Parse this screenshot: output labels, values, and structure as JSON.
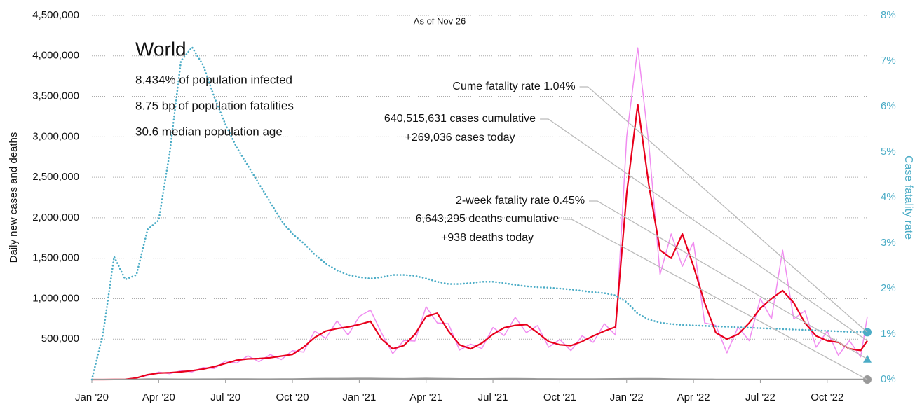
{
  "chart_data": {
    "type": "line",
    "title": "As of Nov 26",
    "ylabel": "Daily new cases and deaths",
    "y2label": "Case fatality rate",
    "info": {
      "heading": "World",
      "lines": [
        "8.434% of population infected",
        "8.75 bp of population fatalities",
        "30.6 median population age"
      ]
    },
    "annotations": [
      {
        "lines": [
          "Cume fatality rate 1.04%"
        ]
      },
      {
        "lines": [
          "640,515,631 cases cumulative",
          "+269,036 cases today"
        ]
      },
      {
        "lines": [
          "2-week fatality rate 0.45%"
        ]
      },
      {
        "lines": [
          "6,643,295 deaths cumulative",
          "+938 deaths today"
        ]
      }
    ],
    "markers": [
      {
        "value": 1.04,
        "axis": "y2",
        "shape": "circle",
        "color": "#4bacc6"
      },
      {
        "value": 0.45,
        "axis": "y2",
        "shape": "triangle",
        "color": "#4bacc6"
      },
      {
        "value": 0,
        "axis": "y",
        "shape": "circle",
        "color": "#999999"
      }
    ],
    "x": [
      0,
      0.5,
      1,
      1.5,
      2,
      2.5,
      3,
      3.5,
      4,
      4.5,
      5,
      5.5,
      6,
      6.5,
      7,
      7.5,
      8,
      8.5,
      9,
      9.5,
      10,
      10.5,
      11,
      11.5,
      12,
      12.5,
      13,
      13.5,
      14,
      14.5,
      15,
      15.5,
      16,
      16.5,
      17,
      17.5,
      18,
      18.5,
      19,
      19.5,
      20,
      20.5,
      21,
      21.5,
      22,
      22.5,
      23,
      23.5,
      24,
      24.5,
      25,
      25.5,
      26,
      26.5,
      27,
      27.5,
      28,
      28.5,
      29,
      29.5,
      30,
      30.5,
      31,
      31.5,
      32,
      32.5,
      33,
      33.5,
      34,
      34.5,
      34.8
    ],
    "xlim": [
      0,
      34.8
    ],
    "xticks": [
      {
        "value": 0,
        "label": "Jan '20"
      },
      {
        "value": 3,
        "label": "Apr '20"
      },
      {
        "value": 6,
        "label": "Jul '20"
      },
      {
        "value": 9,
        "label": "Oct '20"
      },
      {
        "value": 12,
        "label": "Jan '21"
      },
      {
        "value": 15,
        "label": "Apr '21"
      },
      {
        "value": 18,
        "label": "Jul '21"
      },
      {
        "value": 21,
        "label": "Oct '21"
      },
      {
        "value": 24,
        "label": "Jan '22"
      },
      {
        "value": 27,
        "label": "Apr '22"
      },
      {
        "value": 30,
        "label": "Jul '22"
      },
      {
        "value": 33,
        "label": "Oct '22"
      }
    ],
    "ylim": [
      0,
      4500000
    ],
    "yticks": [
      {
        "value": 500000,
        "label": "500,000"
      },
      {
        "value": 1000000,
        "label": "1,000,000"
      },
      {
        "value": 1500000,
        "label": "1,500,000"
      },
      {
        "value": 2000000,
        "label": "2,000,000"
      },
      {
        "value": 2500000,
        "label": "2,500,000"
      },
      {
        "value": 3000000,
        "label": "3,000,000"
      },
      {
        "value": 3500000,
        "label": "3,500,000"
      },
      {
        "value": 4000000,
        "label": "4,000,000"
      },
      {
        "value": 4500000,
        "label": "4,500,000"
      }
    ],
    "y2lim": [
      0,
      8
    ],
    "y2ticks": [
      {
        "value": 0,
        "label": "0%"
      },
      {
        "value": 1,
        "label": "1%"
      },
      {
        "value": 2,
        "label": "2%"
      },
      {
        "value": 3,
        "label": "3%"
      },
      {
        "value": 4,
        "label": "4%"
      },
      {
        "value": 5,
        "label": "5%"
      },
      {
        "value": 6,
        "label": "6%"
      },
      {
        "value": 7,
        "label": "7%"
      },
      {
        "value": 8,
        "label": "8%"
      }
    ],
    "grid": true,
    "series": [
      {
        "color": "#f08cf0",
        "style": "solid",
        "width": 1.5,
        "values": [
          0,
          0,
          1200,
          2500,
          23000,
          50000,
          92000,
          72000,
          109000,
          94000,
          150000,
          136000,
          230000,
          204000,
          293000,
          221000,
          310000,
          247000,
          357000,
          340000,
          600000,
          510000,
          725000,
          550000,
          780000,
          860000,
          575000,
          320000,
          483000,
          476000,
          900000,
          700000,
          690000,
          365000,
          437000,
          383000,
          644000,
          544000,
          770000,
          580000,
          667000,
          400000,
          495000,
          357000,
          540000,
          460000,
          690000,
          550000,
          3000000,
          4100000,
          2900000,
          1300000,
          1800000,
          1400000,
          1700000,
          700000,
          670000,
          330000,
          650000,
          480000,
          1000000,
          750000,
          1600000,
          750000,
          850000,
          400000,
          600000,
          300000,
          480000,
          280000,
          780000
        ]
      },
      {
        "color": "#e8001c",
        "style": "solid",
        "width": 2.2,
        "values": [
          0,
          0,
          1000,
          3000,
          20000,
          60000,
          80000,
          85000,
          95000,
          110000,
          130000,
          160000,
          200000,
          240000,
          255000,
          260000,
          270000,
          290000,
          310000,
          400000,
          520000,
          600000,
          630000,
          650000,
          680000,
          720000,
          500000,
          380000,
          420000,
          560000,
          780000,
          820000,
          600000,
          430000,
          380000,
          450000,
          560000,
          640000,
          670000,
          680000,
          580000,
          470000,
          430000,
          420000,
          470000,
          540000,
          600000,
          650000,
          2300000,
          3400000,
          2400000,
          1600000,
          1500000,
          1800000,
          1400000,
          950000,
          580000,
          500000,
          560000,
          700000,
          880000,
          1000000,
          1100000,
          950000,
          700000,
          540000,
          480000,
          460000,
          380000,
          360000,
          480000
        ]
      },
      {
        "color": "#999999",
        "style": "solid",
        "width": 2,
        "values": [
          0,
          0,
          100,
          500,
          3000,
          6000,
          6500,
          5000,
          4500,
          4500,
          5000,
          5500,
          6000,
          6000,
          5800,
          5500,
          5500,
          6000,
          7000,
          9000,
          11000,
          12000,
          12000,
          13000,
          14000,
          14000,
          12000,
          10000,
          9500,
          12000,
          13500,
          12000,
          10000,
          8500,
          8500,
          9000,
          9500,
          10000,
          10000,
          9500,
          8000,
          7500,
          7000,
          7000,
          7000,
          7000,
          7500,
          8500,
          9500,
          10000,
          11000,
          9500,
          7000,
          5000,
          4000,
          3500,
          3000,
          2500,
          2500,
          2500,
          2200,
          2100,
          2000,
          2000,
          1900,
          1800,
          1700,
          1600,
          1500,
          1400,
          1300
        ]
      },
      {
        "color": "#4bacc6",
        "style": "dotted",
        "width": 2.6,
        "axis": "y2",
        "values": [
          0,
          1.0,
          2.7,
          2.2,
          2.3,
          3.3,
          3.5,
          5.0,
          7.0,
          7.3,
          6.9,
          6.2,
          5.6,
          5.1,
          4.7,
          4.3,
          3.9,
          3.5,
          3.2,
          3.0,
          2.75,
          2.55,
          2.4,
          2.3,
          2.25,
          2.22,
          2.25,
          2.3,
          2.3,
          2.28,
          2.22,
          2.15,
          2.1,
          2.1,
          2.12,
          2.15,
          2.15,
          2.12,
          2.08,
          2.05,
          2.03,
          2.02,
          2.0,
          1.98,
          1.95,
          1.92,
          1.9,
          1.85,
          1.7,
          1.45,
          1.32,
          1.25,
          1.22,
          1.2,
          1.19,
          1.18,
          1.17,
          1.16,
          1.15,
          1.14,
          1.13,
          1.12,
          1.11,
          1.1,
          1.09,
          1.08,
          1.07,
          1.06,
          1.05,
          1.05,
          1.04
        ]
      }
    ]
  }
}
